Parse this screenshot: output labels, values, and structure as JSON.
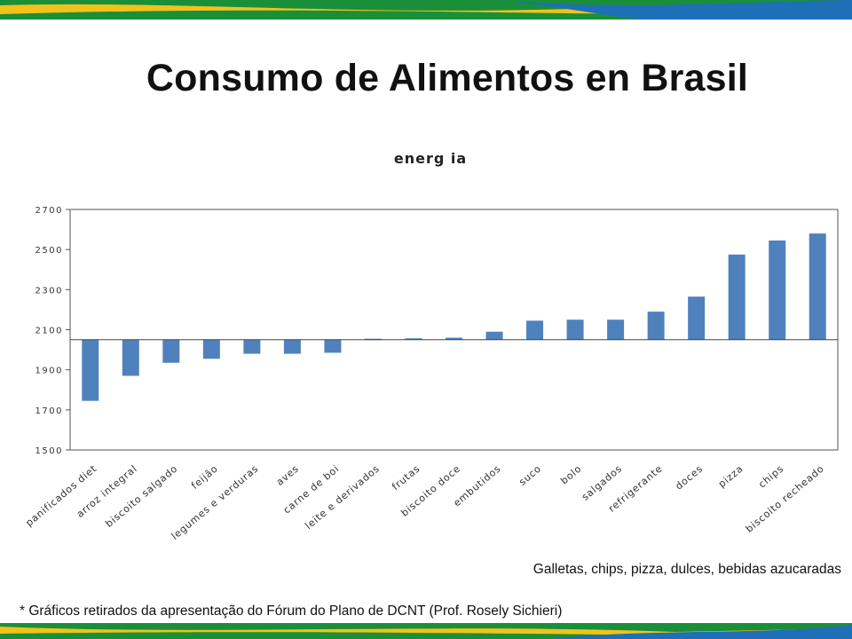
{
  "slide": {
    "title": "Consumo de Alimentos en Brasil",
    "note_right": "Galletas, chips, pizza, dulces, bebidas azucaradas",
    "footnote": "* Gráficos retirados da apresentação do Fórum do Plano de DCNT (Prof. Rosely Sichieri)"
  },
  "colors": {
    "bar": "#4F81BD",
    "banner_green": "#1a8f3a",
    "banner_yellow": "#f2c21b",
    "banner_blue": "#1d6fb8"
  },
  "chart_data": {
    "type": "bar",
    "title": "energ ia",
    "xlabel": "",
    "ylabel": "",
    "ylim": [
      1500,
      2700
    ],
    "baseline": 2050,
    "yticks": [
      1500,
      1700,
      1900,
      2100,
      2300,
      2500,
      2700
    ],
    "grid": false,
    "categories": [
      "panificados diet",
      "arroz integral",
      "biscoito salgado",
      "feijão",
      "legumes e verduras",
      "aves",
      "carne de boi",
      "leite e derivados",
      "frutas",
      "biscoito doce",
      "embutidos",
      "suco",
      "bolo",
      "salgados",
      "refrigerante",
      "doces",
      "pizza",
      "chips",
      "biscoito recheado"
    ],
    "values": [
      1745,
      1870,
      1935,
      1955,
      1980,
      1980,
      1985,
      2055,
      2057,
      2060,
      2090,
      2145,
      2150,
      2150,
      2190,
      2265,
      2475,
      2545,
      2580
    ]
  }
}
